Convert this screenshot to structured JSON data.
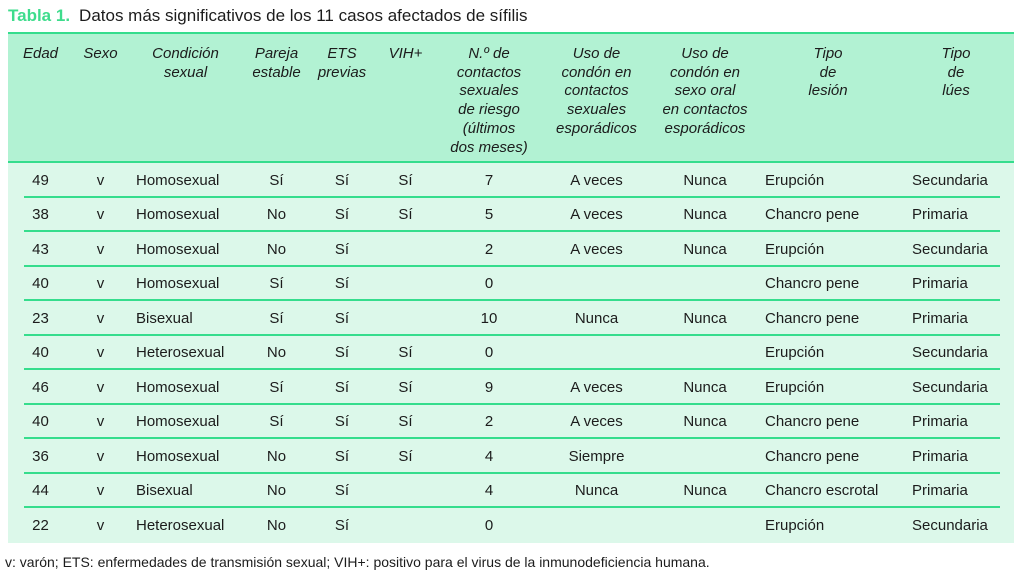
{
  "colors": {
    "accent_green": "#3edc8c",
    "line_green": "#35dd8d",
    "header_bg": "#b2f2d3",
    "body_bg": "#dcf8ea",
    "text_color": "#1c1c1c"
  },
  "title": {
    "label": "Tabla 1.",
    "text": "Datos más significativos de los 11 casos afectados de sífilis"
  },
  "table": {
    "columns": [
      {
        "label": "Edad"
      },
      {
        "label": "Sexo"
      },
      {
        "label": "Condición\nsexual"
      },
      {
        "label": "Pareja\nestable"
      },
      {
        "label": "ETS\nprevias"
      },
      {
        "label": "VIH+"
      },
      {
        "label": "N.º de\ncontactos\nsexuales\nde riesgo\n(últimos\ndos meses)"
      },
      {
        "label": "Uso de\ncondón en\ncontactos\nsexuales\nesporádicos"
      },
      {
        "label": "Uso de\ncondón en\nsexo oral\nen contactos\nesporádicos"
      },
      {
        "label": "Tipo\nde\nlesión"
      },
      {
        "label": "Tipo\nde\nlúes"
      }
    ],
    "rows": [
      [
        "49",
        "v",
        "Homosexual",
        "Sí",
        "Sí",
        "Sí",
        "7",
        "A veces",
        "Nunca",
        "Erupción",
        "Secundaria"
      ],
      [
        "38",
        "v",
        "Homosexual",
        "No",
        "Sí",
        "Sí",
        "5",
        "A veces",
        "Nunca",
        "Chancro pene",
        "Primaria"
      ],
      [
        "43",
        "v",
        "Homosexual",
        "No",
        "Sí",
        "",
        "2",
        "A veces",
        "Nunca",
        "Erupción",
        "Secundaria"
      ],
      [
        "40",
        "v",
        "Homosexual",
        "Sí",
        "Sí",
        "",
        "0",
        "",
        "",
        "Chancro pene",
        "Primaria"
      ],
      [
        "23",
        "v",
        "Bisexual",
        "Sí",
        "Sí",
        "",
        "10",
        "Nunca",
        "Nunca",
        "Chancro pene",
        "Primaria"
      ],
      [
        "40",
        "v",
        "Heterosexual",
        "No",
        "Sí",
        "Sí",
        "0",
        "",
        "",
        "Erupción",
        "Secundaria"
      ],
      [
        "46",
        "v",
        "Homosexual",
        "Sí",
        "Sí",
        "Sí",
        "9",
        "A veces",
        "Nunca",
        "Erupción",
        "Secundaria"
      ],
      [
        "40",
        "v",
        "Homosexual",
        "Sí",
        "Sí",
        "Sí",
        "2",
        "A veces",
        "Nunca",
        "Chancro pene",
        "Primaria"
      ],
      [
        "36",
        "v",
        "Homosexual",
        "No",
        "Sí",
        "Sí",
        "4",
        "Siempre",
        "",
        "Chancro pene",
        "Primaria"
      ],
      [
        "44",
        "v",
        "Bisexual",
        "No",
        "Sí",
        "",
        "4",
        "Nunca",
        "Nunca",
        "Chancro escrotal",
        "Primaria"
      ],
      [
        "22",
        "v",
        "Heterosexual",
        "No",
        "Sí",
        "",
        "0",
        "",
        "",
        "Erupción",
        "Secundaria"
      ]
    ]
  },
  "footnote": "v: varón; ETS: enfermedades de transmisión sexual; VIH+: positivo para el virus de la inmunodeficiencia humana."
}
